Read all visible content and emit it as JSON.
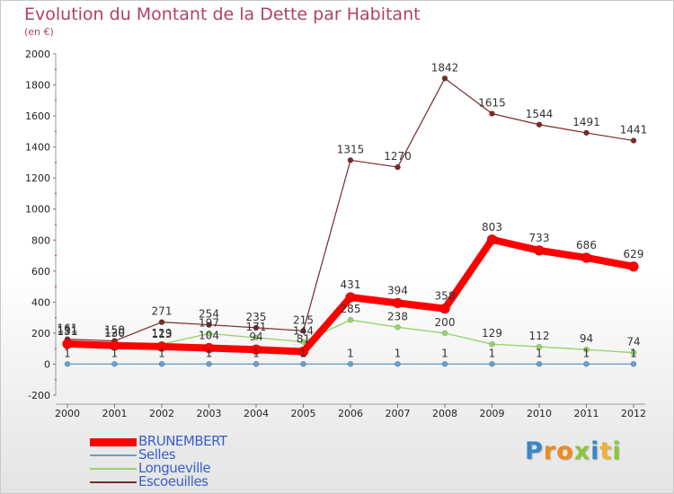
{
  "title": "Evolution du Montant de la Dette par Habitant",
  "subtitle": "(en €)",
  "logo": "Proxiti",
  "chart_data": {
    "type": "line",
    "x": [
      "2000",
      "2001",
      "2002",
      "2003",
      "2004",
      "2005",
      "2006",
      "2007",
      "2008",
      "2009",
      "2010",
      "2011",
      "2012"
    ],
    "ylim": [
      -200,
      2000
    ],
    "yticks": [
      "-200",
      "0",
      "200",
      "400",
      "600",
      "800",
      "1000",
      "1200",
      "1400",
      "1600",
      "1800",
      "2000"
    ],
    "grid": false,
    "legend_position": "bottom-left",
    "series": [
      {
        "name": "BRUNEMBERT",
        "color": "#ff0000",
        "values": [
          131,
          120,
          113,
          104,
          94,
          81,
          431,
          394,
          358,
          803,
          733,
          686,
          629
        ],
        "labels": [
          "131",
          "120",
          "113",
          "104",
          "94",
          "81",
          "431",
          "394",
          "358",
          "803",
          "733",
          "686",
          "629"
        ]
      },
      {
        "name": "Selles",
        "color": "#6a9fc7",
        "values": [
          1,
          1,
          1,
          1,
          1,
          1,
          1,
          1,
          1,
          1,
          1,
          1,
          1
        ],
        "labels": [
          "1",
          "1",
          "1",
          "1",
          "1",
          "1",
          "1",
          "1",
          "1",
          "1",
          "1",
          "1",
          "1"
        ]
      },
      {
        "name": "Longueville",
        "color": "#99d36b",
        "values": [
          151,
          130,
          129,
          197,
          171,
          144,
          285,
          238,
          200,
          129,
          112,
          94,
          74
        ],
        "labels": [
          "151",
          "130",
          "129",
          "197",
          "171",
          "144",
          "285",
          "238",
          "200",
          "129",
          "112",
          "94",
          "74"
        ]
      },
      {
        "name": "Escoeuilles",
        "color": "#7a2a2a",
        "values": [
          161,
          150,
          271,
          254,
          235,
          215,
          1315,
          1270,
          1842,
          1615,
          1544,
          1491,
          1441
        ],
        "labels": [
          "161",
          "150",
          "271",
          "254",
          "235",
          "215",
          "1315",
          "1270",
          "1842",
          "1615",
          "1544",
          "1491",
          "1441"
        ]
      }
    ]
  }
}
